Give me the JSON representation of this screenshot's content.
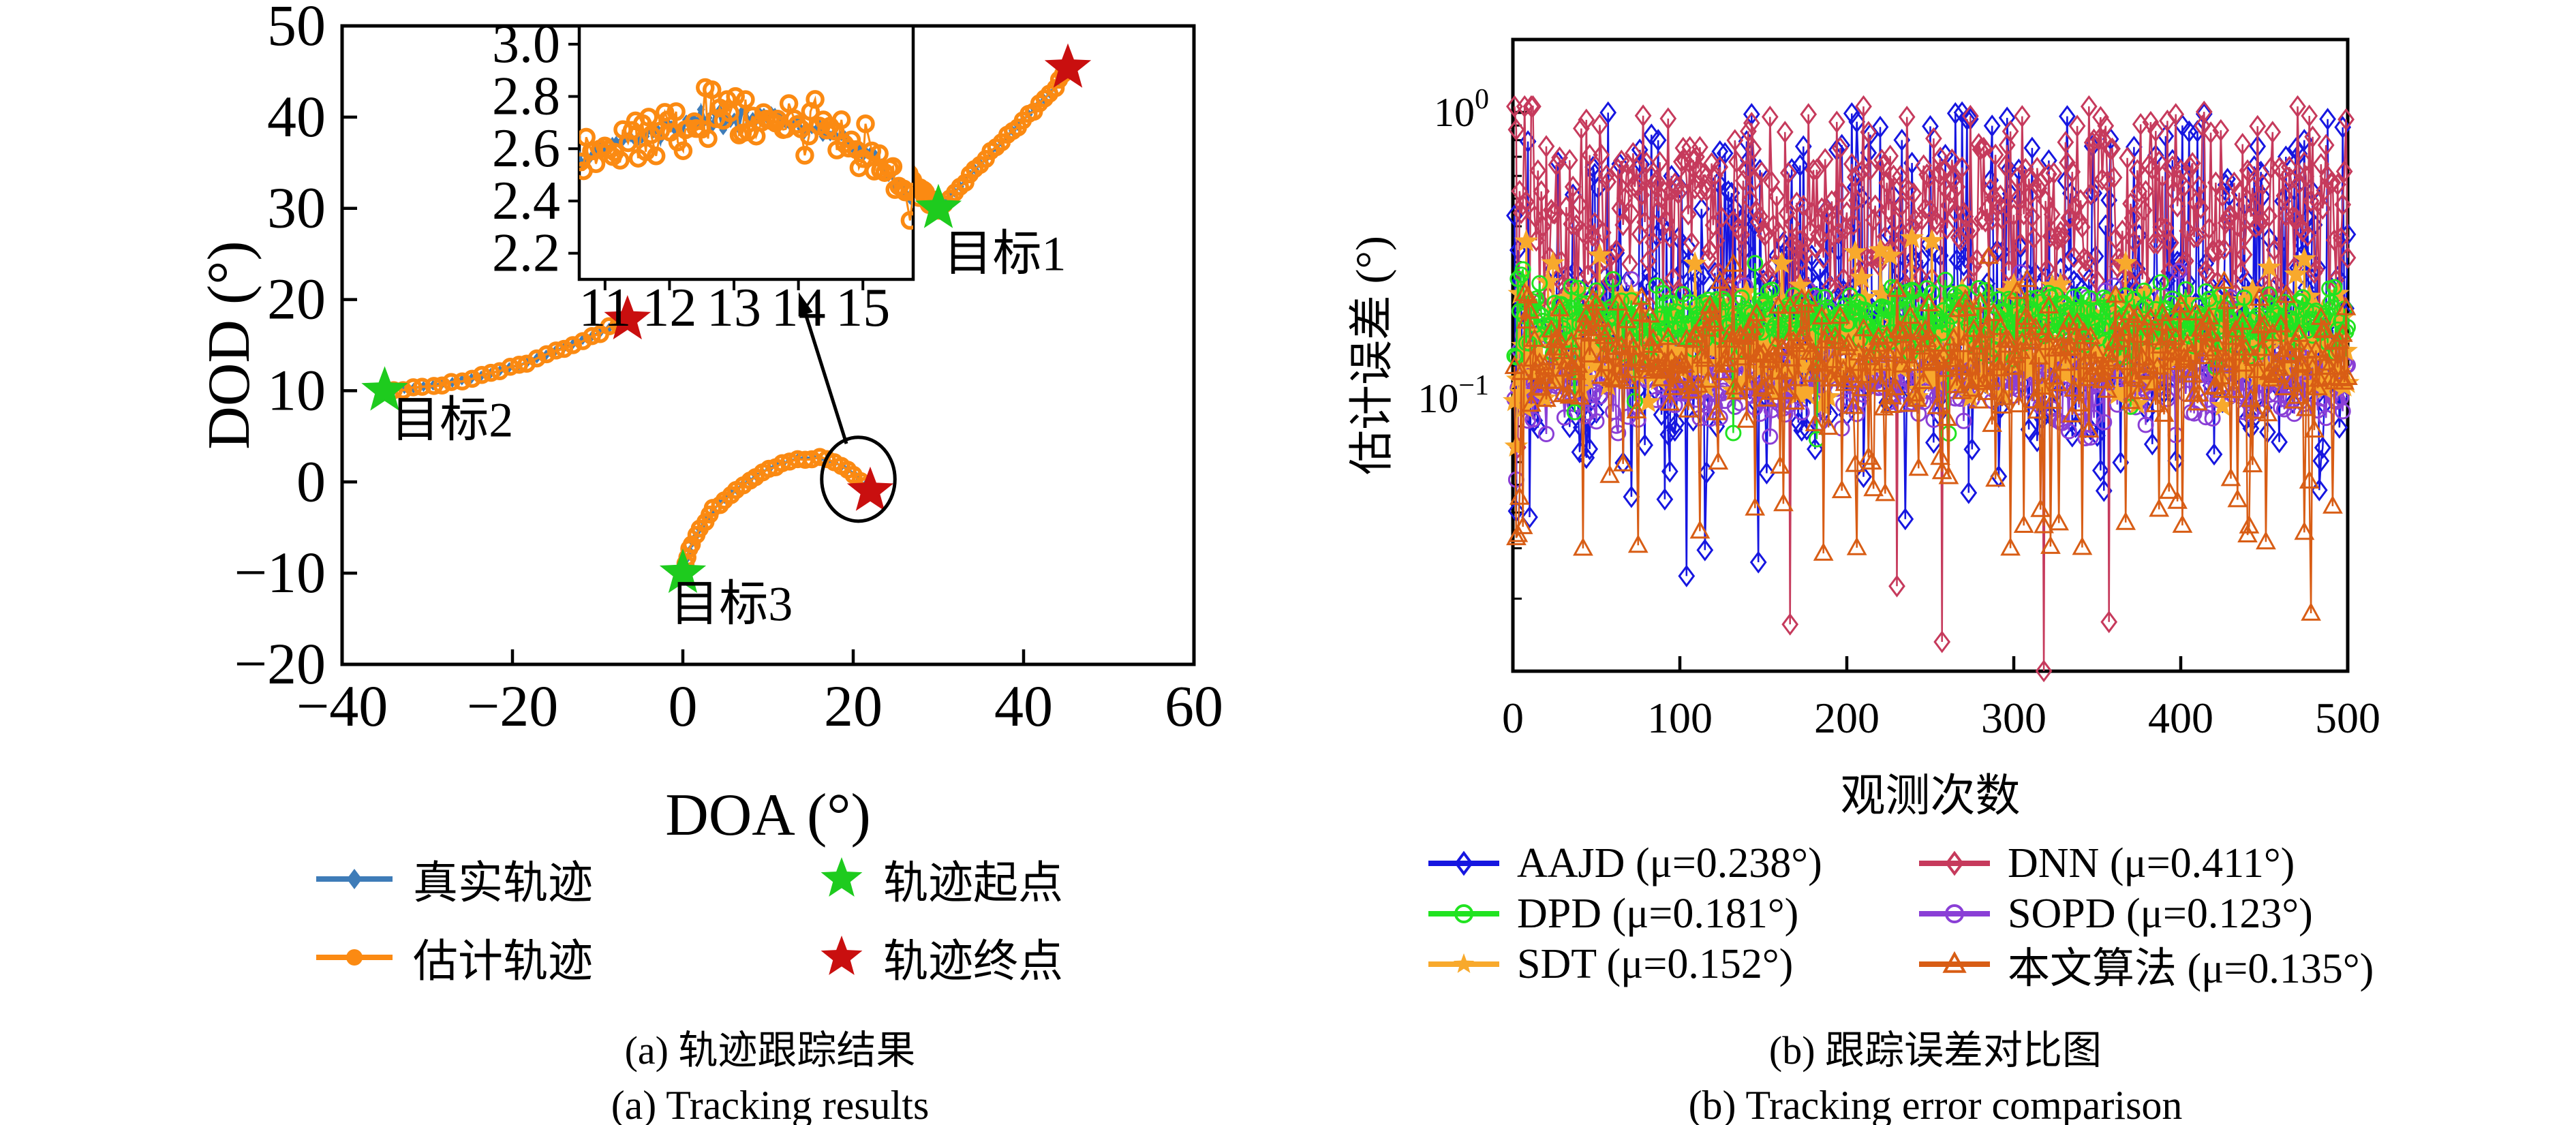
{
  "figure": {
    "bg": "#ffffff"
  },
  "chart_data": [
    {
      "id": "a",
      "type": "scatter",
      "caption_cn": "(a) 轨迹跟踪结果",
      "caption_en": "(a) Tracking results",
      "xlabel": "DOA (°)",
      "ylabel": "DOD (°)",
      "xlim": [
        -40,
        60
      ],
      "ylim": [
        -20,
        50
      ],
      "xticks": [
        -40,
        -20,
        0,
        20,
        40,
        60
      ],
      "yticks": [
        -20,
        -10,
        0,
        10,
        20,
        30,
        40,
        50
      ],
      "grid": false,
      "colors": {
        "true": "#3E7CB8",
        "est": "#FB8A12",
        "start": "#1ECB1E",
        "end": "#C90F0F",
        "axis": "#000000"
      },
      "legend": [
        {
          "key": "true-trajectory",
          "label": "真实轨迹",
          "marker": "diamond",
          "line": true,
          "color": "#3E7CB8"
        },
        {
          "key": "trajectory-start",
          "label": "轨迹起点",
          "marker": "star",
          "line": false,
          "color": "#1ECB1E"
        },
        {
          "key": "estimated-trajectory",
          "label": "估计轨迹",
          "marker": "circle",
          "line": true,
          "color": "#FB8A12"
        },
        {
          "key": "trajectory-end",
          "label": "轨迹终点",
          "marker": "star",
          "line": false,
          "color": "#C90F0F"
        }
      ],
      "targets": [
        {
          "name": "目标1",
          "label_pos": [
            30.6,
            23.2
          ],
          "start": [
            30,
            30
          ],
          "end": [
            45.2,
            45.4
          ],
          "runs": [
            {
              "points": [
                [
                  21.5,
                  38.2
                ],
                [
                  23,
                  36.6
                ],
                [
                  24.5,
                  35.1
                ],
                [
                  26,
                  33.7
                ],
                [
                  27.2,
                  32.5
                ],
                [
                  28.2,
                  31.5
                ],
                [
                  29.2,
                  30.6
                ],
                [
                  30,
                  30
                ]
              ],
              "n": 60,
              "jitter": 0.42
            },
            {
              "points": [
                [
                  30,
                  30
                ],
                [
                  31.5,
                  31.4
                ],
                [
                  33,
                  32.9
                ],
                [
                  34.5,
                  34.4
                ],
                [
                  36,
                  35.9
                ],
                [
                  37.5,
                  37.3
                ],
                [
                  39,
                  38.8
                ],
                [
                  40.5,
                  40.2
                ],
                [
                  42,
                  41.6
                ],
                [
                  43.5,
                  43.1
                ],
                [
                  45.2,
                  45.4
                ]
              ],
              "n": 26,
              "jitter": 0.12
            }
          ]
        },
        {
          "name": "目标2",
          "label_pos": [
            -34.3,
            5.0
          ],
          "start": [
            -35,
            10
          ],
          "end": [
            -6.5,
            17.8
          ],
          "runs": [
            {
              "points": [
                [
                  -35,
                  10
                ],
                [
                  -32.5,
                  10.2
                ],
                [
                  -30,
                  10.5
                ],
                [
                  -27.5,
                  10.9
                ],
                [
                  -25,
                  11.3
                ],
                [
                  -22.5,
                  11.9
                ],
                [
                  -20,
                  12.6
                ],
                [
                  -17.5,
                  13.4
                ],
                [
                  -15,
                  14.3
                ],
                [
                  -12.5,
                  15.3
                ],
                [
                  -10,
                  16.3
                ],
                [
                  -8,
                  17.1
                ],
                [
                  -6.5,
                  17.8
                ]
              ],
              "n": 27,
              "jitter": 0.12
            }
          ]
        },
        {
          "name": "目标3",
          "label_pos": [
            -1.5,
            -15.2
          ],
          "start": [
            0,
            -10
          ],
          "end": [
            22,
            -1
          ],
          "runs": [
            {
              "points": [
                [
                  0,
                  -10
                ],
                [
                  0.5,
                  -8.3
                ],
                [
                  1.1,
                  -6.7
                ],
                [
                  1.9,
                  -5.2
                ],
                [
                  2.9,
                  -3.8
                ],
                [
                  4.1,
                  -2.5
                ],
                [
                  5.5,
                  -1.3
                ],
                [
                  7.1,
                  -0.2
                ],
                [
                  8.8,
                  0.8
                ],
                [
                  10.6,
                  1.7
                ],
                [
                  12.4,
                  2.3
                ],
                [
                  14.2,
                  2.6
                ],
                [
                  15.9,
                  2.6
                ],
                [
                  17.4,
                  2.3
                ],
                [
                  18.8,
                  1.7
                ],
                [
                  20.1,
                  0.9
                ],
                [
                  21.2,
                  -0.1
                ],
                [
                  22,
                  -1
                ]
              ],
              "n": 34,
              "jitter": 0.12
            }
          ]
        }
      ],
      "inset": {
        "xlim": [
          10.6,
          15.78
        ],
        "ylim": [
          2.1,
          3.07
        ],
        "xticks": [
          11,
          12,
          13,
          14,
          15
        ],
        "yticks": [
          2.2,
          2.4,
          2.6,
          2.8,
          3.0
        ],
        "true_points": [
          [
            10.6,
            2.565
          ],
          [
            11.2,
            2.62
          ],
          [
            11.8,
            2.665
          ],
          [
            12.4,
            2.7
          ],
          [
            13,
            2.72
          ],
          [
            13.6,
            2.72
          ],
          [
            14.1,
            2.69
          ],
          [
            14.6,
            2.645
          ],
          [
            15,
            2.585
          ],
          [
            15.35,
            2.52
          ],
          [
            15.6,
            2.45
          ],
          [
            15.78,
            2.38
          ]
        ],
        "n_est": 92,
        "jitter": 0.05
      },
      "annotations": {
        "circle": {
          "cx": 20.6,
          "cy": 0.3,
          "rx": 4.3,
          "ry": 4.6
        },
        "arrow": {
          "from": [
            19.2,
            4.2
          ],
          "to": [
            13.6,
            20.8
          ]
        }
      }
    },
    {
      "id": "b",
      "type": "line",
      "caption_cn": "(b) 跟踪误差对比图",
      "caption_en": "(b) Tracking error comparison",
      "xlabel": "观测次数",
      "ylabel": "估计误差 (°)",
      "xlim": [
        0,
        500
      ],
      "xticks": [
        0,
        100,
        200,
        300,
        400,
        500
      ],
      "yscale": "log",
      "ylog_decades": [
        0,
        -1
      ],
      "ylim": [
        0.0112,
        1.8
      ],
      "n_points": 500,
      "series": [
        {
          "key": "aajd",
          "name": "AAJD",
          "mu_label": "(μ=0.238°)",
          "color": "#1616E0",
          "marker": "diamond",
          "z": 0,
          "gen": {
            "seed": 11,
            "base": -0.78,
            "sigma": 0.22,
            "up_prob": 0.13,
            "up_max": 0,
            "dn_prob": 0.015,
            "dn_min": -1.6,
            "force": [
              [
                104,
                -1.62
              ]
            ]
          }
        },
        {
          "key": "dnn",
          "name": "DNN",
          "mu_label": "(μ=0.411°)",
          "color": "#C63A5C",
          "marker": "diamond",
          "z": 1,
          "gen": {
            "seed": 22,
            "base": -0.4,
            "sigma": 0.17,
            "up_prob": 0.18,
            "up_max": 0,
            "dn_prob": 0.012,
            "dn_min": -1.8,
            "force": [
              [
                257,
                -1.85
              ],
              [
                318,
                -1.952
              ]
            ]
          }
        },
        {
          "key": "dpd",
          "name": "DPD",
          "mu_label": "(μ=0.181°)",
          "color": "#21E321",
          "marker": "circle",
          "z": 4,
          "gen": {
            "seed": 33,
            "base": -0.72,
            "sigma": 0.055,
            "up_prob": 0.02,
            "up_max": -0.52,
            "dn_prob": 0.02,
            "dn_min": -1.15,
            "force": []
          }
        },
        {
          "key": "sopd",
          "name": "SOPD",
          "mu_label": "(μ=0.123°)",
          "color": "#8A3FD6",
          "marker": "circle",
          "z": 2,
          "gen": {
            "seed": 44,
            "base": -0.93,
            "sigma": 0.08,
            "up_prob": 0.02,
            "up_max": -0.55,
            "dn_prob": 0.01,
            "dn_min": -1.15,
            "force": []
          }
        },
        {
          "key": "sdt",
          "name": "SDT",
          "mu_label": "(μ=0.152°)",
          "color": "#F8A92C",
          "marker": "star",
          "z": 3,
          "gen": {
            "seed": 55,
            "base": -0.8,
            "sigma": 0.09,
            "up_prob": 0.03,
            "up_max": -0.42,
            "dn_prob": 0.02,
            "dn_min": -1.1,
            "force": []
          }
        },
        {
          "key": "proposed",
          "name": "本文算法",
          "mu_label": "(μ=0.135°)",
          "color": "#D85D15",
          "marker": "triangle",
          "z": 5,
          "gen": {
            "seed": 66,
            "base": -0.85,
            "sigma": 0.1,
            "up_prob": 0.02,
            "up_max": -0.5,
            "dn_prob": 0.1,
            "dn_min": -1.55,
            "force": [
              [
                478,
                -1.75
              ]
            ]
          }
        }
      ]
    }
  ]
}
